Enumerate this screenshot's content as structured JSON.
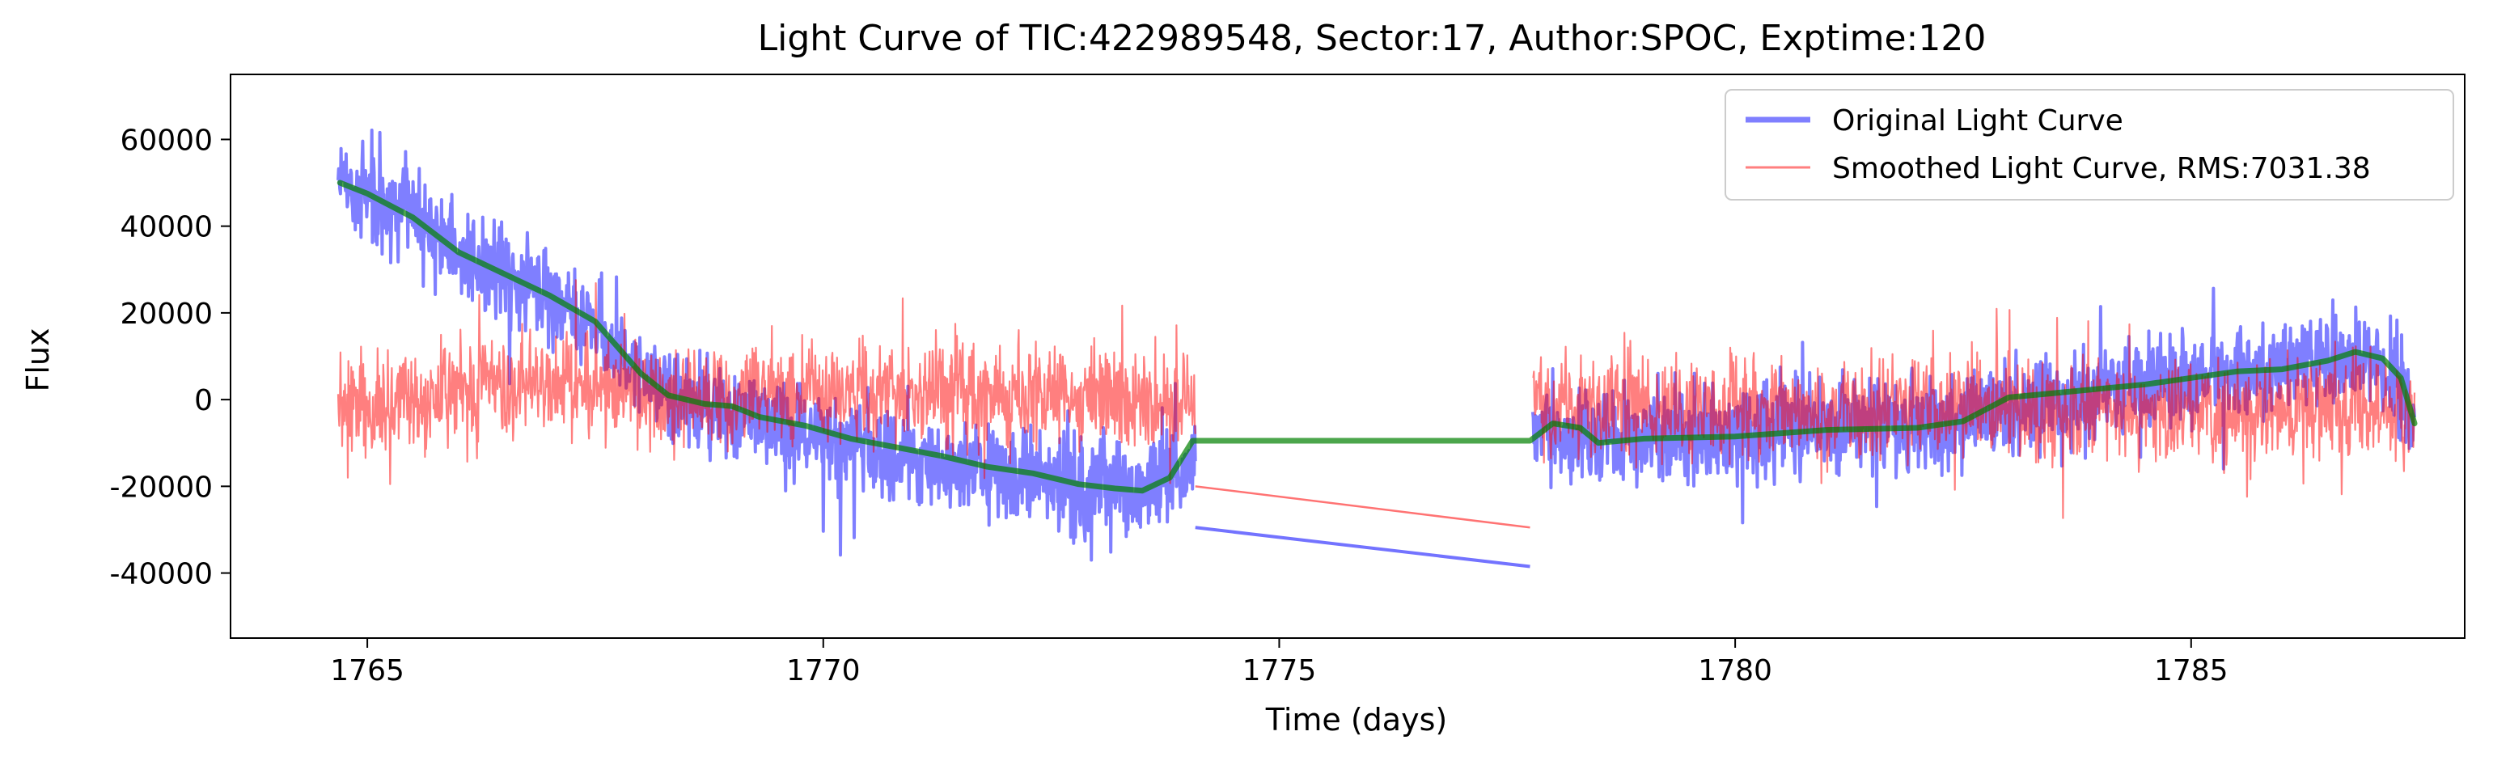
{
  "chart_data": {
    "type": "line",
    "title": "Light Curve of TIC:422989548, Sector:17, Author:SPOC, Exptime:120",
    "xlabel": "Time (days)",
    "ylabel": "Flux",
    "xlim": [
      1763.5,
      1788.0
    ],
    "ylim": [
      -55000,
      75000
    ],
    "xticks": [
      1765,
      1770,
      1775,
      1780,
      1785
    ],
    "yticks": [
      -40000,
      -20000,
      0,
      20000,
      40000,
      60000
    ],
    "grid": false,
    "legend_position": "top-right",
    "segments": [
      [
        1764.68,
        1774.08
      ],
      [
        1777.78,
        1787.45
      ]
    ],
    "series": [
      {
        "name": "Original Light Curve",
        "color": "#0000ff",
        "opacity": 0.5,
        "baseline_points": [
          [
            1764.7,
            50000
          ],
          [
            1765.0,
            47000
          ],
          [
            1765.5,
            42000
          ],
          [
            1766.0,
            34000
          ],
          [
            1766.5,
            29000
          ],
          [
            1767.0,
            24000
          ],
          [
            1767.5,
            17000
          ],
          [
            1768.0,
            5000
          ],
          [
            1768.5,
            -1000
          ],
          [
            1769.0,
            -3000
          ],
          [
            1769.5,
            -6000
          ],
          [
            1770.0,
            -9000
          ],
          [
            1770.5,
            -11000
          ],
          [
            1771.0,
            -13000
          ],
          [
            1771.5,
            -15000
          ],
          [
            1772.0,
            -17000
          ],
          [
            1772.5,
            -19000
          ],
          [
            1773.0,
            -20000
          ],
          [
            1773.5,
            -20000
          ],
          [
            1774.05,
            -18000
          ],
          [
            1777.85,
            -7000
          ],
          [
            1778.5,
            -10000
          ],
          [
            1779.0,
            -9000
          ],
          [
            1780.0,
            -8000
          ],
          [
            1781.0,
            -6000
          ],
          [
            1782.0,
            -6000
          ],
          [
            1783.0,
            -2000
          ],
          [
            1784.0,
            2000
          ],
          [
            1785.0,
            5000
          ],
          [
            1786.0,
            7000
          ],
          [
            1786.8,
            10000
          ],
          [
            1787.2,
            7000
          ],
          [
            1787.45,
            -5000
          ]
        ],
        "noise_amplitude": 8000,
        "gap_line": [
          [
            1774.08,
            -29500
          ],
          [
            1777.75,
            -38500
          ]
        ]
      },
      {
        "name": "Smoothed Light Curve, RMS:7031.38",
        "color": "#ff0000",
        "opacity": 0.5,
        "baseline_points": [
          [
            1764.7,
            0
          ],
          [
            1765.5,
            0
          ],
          [
            1766.5,
            3000
          ],
          [
            1767.2,
            5000
          ],
          [
            1767.5,
            3000
          ],
          [
            1768.5,
            0
          ],
          [
            1769.5,
            1000
          ],
          [
            1770.5,
            2000
          ],
          [
            1771.5,
            2000
          ],
          [
            1772.5,
            1000
          ],
          [
            1773.5,
            0
          ],
          [
            1774.05,
            0
          ],
          [
            1777.85,
            0
          ],
          [
            1779.0,
            -1000
          ],
          [
            1781.0,
            -2000
          ],
          [
            1783.0,
            -2000
          ],
          [
            1785.0,
            -3000
          ],
          [
            1786.5,
            -1000
          ],
          [
            1787.45,
            -3000
          ]
        ],
        "noise_amplitude": 8500,
        "gap_line": [
          [
            1774.08,
            -20000
          ],
          [
            1777.75,
            -29500
          ]
        ]
      },
      {
        "name": "",
        "color": "#008000",
        "opacity": 0.7,
        "points": [
          [
            1764.7,
            50000
          ],
          [
            1765.0,
            47500
          ],
          [
            1765.5,
            42000
          ],
          [
            1766.0,
            34000
          ],
          [
            1766.5,
            29000
          ],
          [
            1767.0,
            24000
          ],
          [
            1767.5,
            18000
          ],
          [
            1768.0,
            6000
          ],
          [
            1768.3,
            1000
          ],
          [
            1768.7,
            -1000
          ],
          [
            1769.0,
            -1500
          ],
          [
            1769.3,
            -4000
          ],
          [
            1769.8,
            -6000
          ],
          [
            1770.3,
            -9000
          ],
          [
            1770.8,
            -11000
          ],
          [
            1771.3,
            -13000
          ],
          [
            1771.8,
            -15500
          ],
          [
            1772.3,
            -17000
          ],
          [
            1772.8,
            -19500
          ],
          [
            1773.2,
            -20500
          ],
          [
            1773.5,
            -21000
          ],
          [
            1773.8,
            -18000
          ],
          [
            1774.05,
            -9500
          ],
          [
            1777.75,
            -9500
          ],
          [
            1778.0,
            -5500
          ],
          [
            1778.3,
            -6500
          ],
          [
            1778.5,
            -10000
          ],
          [
            1779.0,
            -9000
          ],
          [
            1780.0,
            -8500
          ],
          [
            1781.0,
            -7000
          ],
          [
            1782.0,
            -6500
          ],
          [
            1782.5,
            -5000
          ],
          [
            1783.0,
            500
          ],
          [
            1783.5,
            1500
          ],
          [
            1784.0,
            2500
          ],
          [
            1784.5,
            3500
          ],
          [
            1785.0,
            5000
          ],
          [
            1785.5,
            6500
          ],
          [
            1786.0,
            7000
          ],
          [
            1786.5,
            9000
          ],
          [
            1786.8,
            11000
          ],
          [
            1787.1,
            9500
          ],
          [
            1787.3,
            5000
          ],
          [
            1787.45,
            -5500
          ]
        ]
      }
    ]
  }
}
